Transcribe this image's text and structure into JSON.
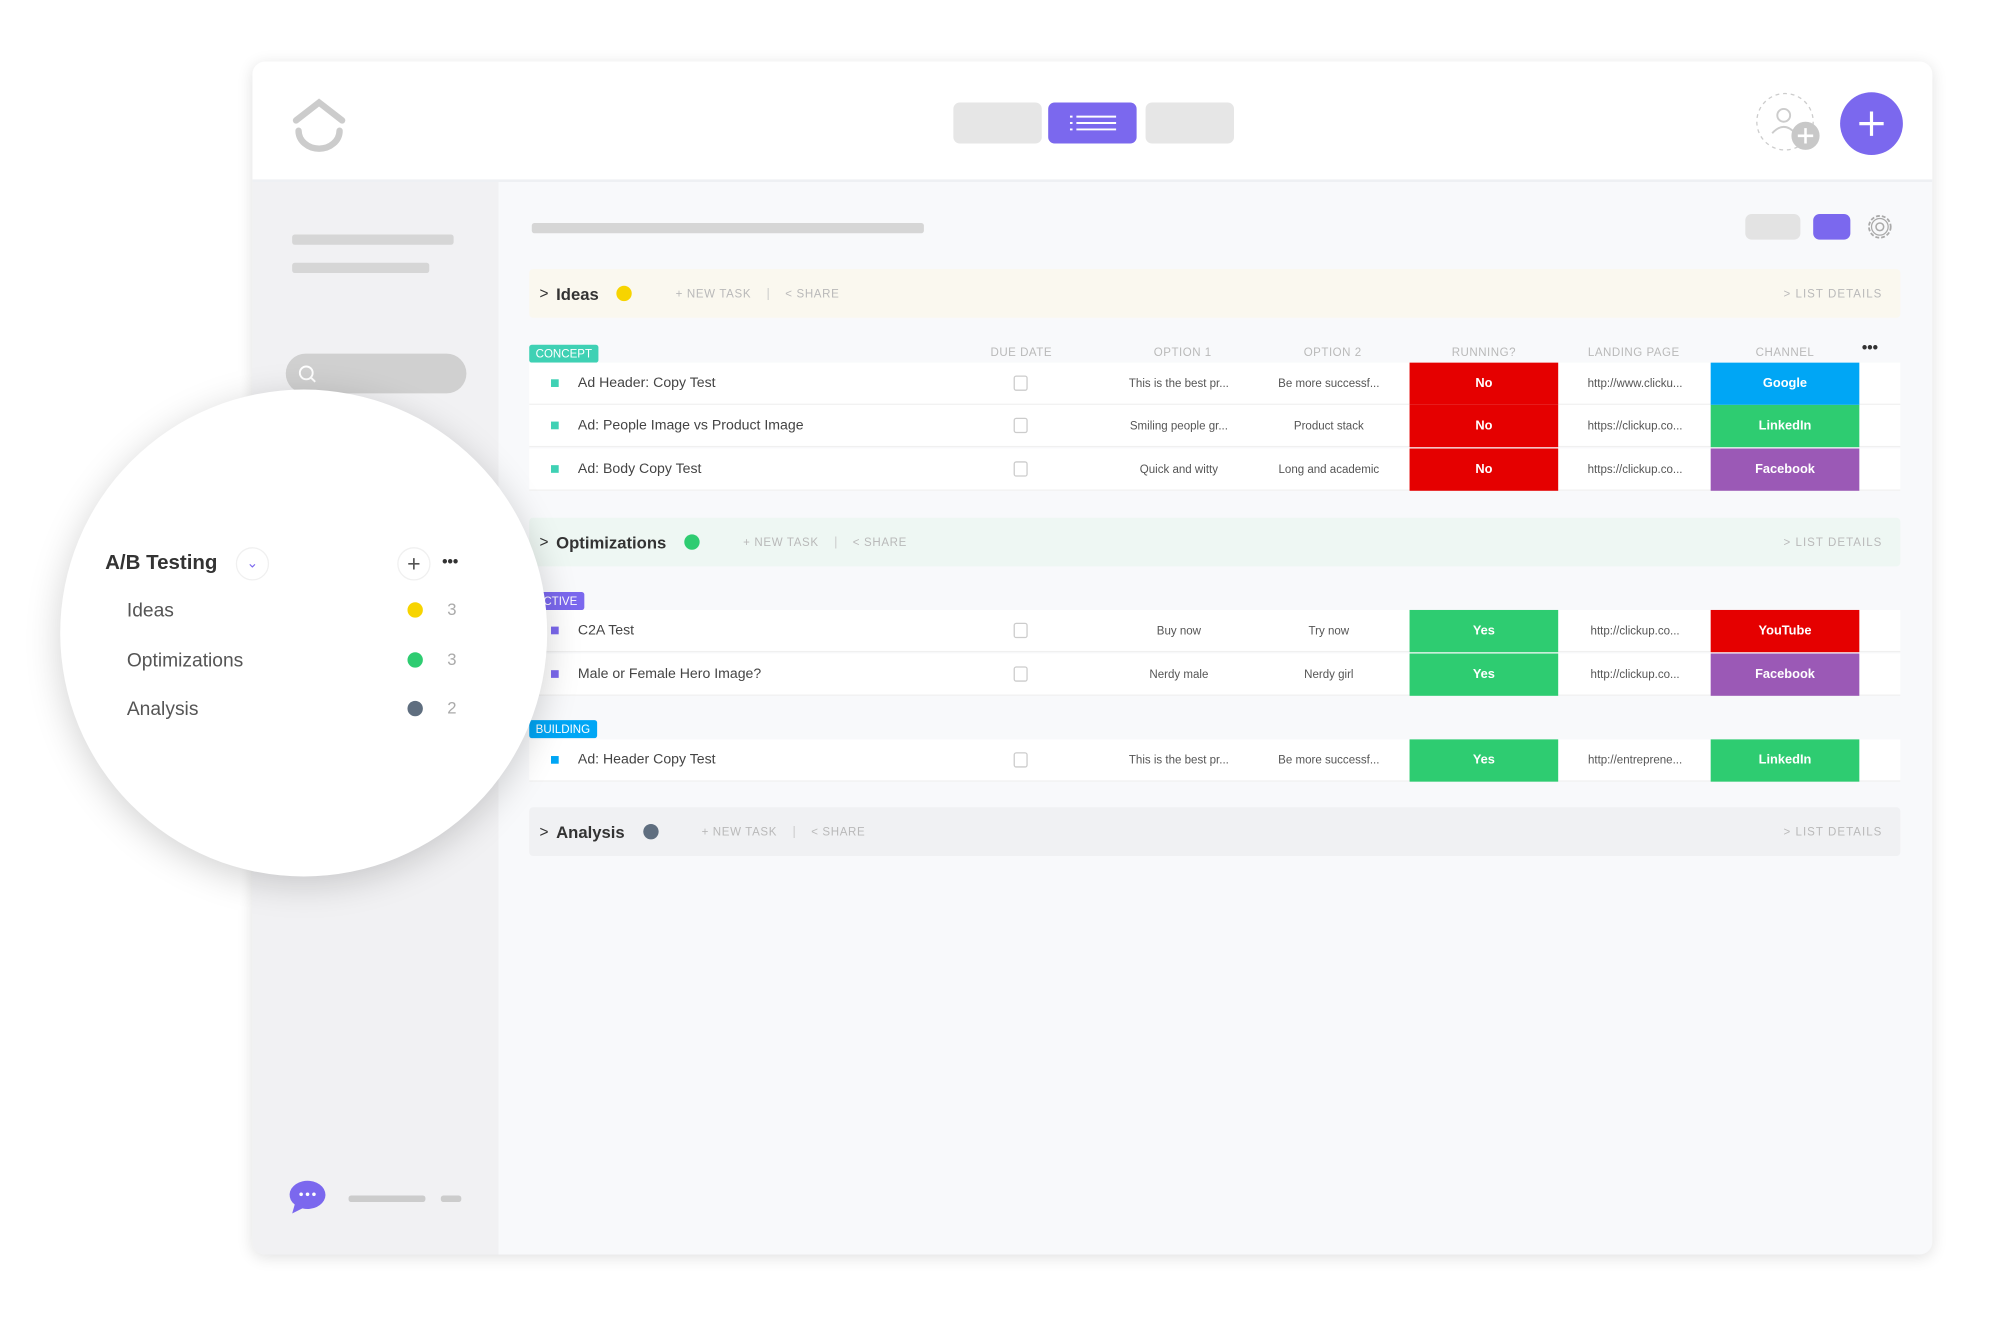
{
  "colors": {
    "accent": "#7b68ee",
    "yellow": "#f7d400",
    "green": "#2ecc71",
    "gray": "#5f6e7f",
    "red": "#e50000",
    "blue": "#00a6f5",
    "purple": "#9b59b6"
  },
  "topbar": {
    "logo": "clickup-logo-icon",
    "view_active": "list-view-icon",
    "invite_icon": "add-user-icon",
    "add_icon": "plus-icon"
  },
  "toolbar": {
    "settings_icon": "gear-icon"
  },
  "sidebar": {
    "search_icon": "search-icon",
    "chat_icon": "chat-icon"
  },
  "popup": {
    "title": "A/B Testing",
    "items": [
      {
        "label": "Ideas",
        "count": "3",
        "color": "#f7d400"
      },
      {
        "label": "Optimizations",
        "count": "3",
        "color": "#2ecc71"
      },
      {
        "label": "Analysis",
        "count": "2",
        "color": "#5f6e7f"
      }
    ]
  },
  "columns": {
    "due": "DUE DATE",
    "opt1": "OPTION 1",
    "opt2": "OPTION 2",
    "running": "RUNNING?",
    "landing": "LANDING PAGE",
    "channel": "CHANNEL"
  },
  "actions": {
    "new_task": "+ NEW TASK",
    "share": "SHARE",
    "list_details": "LIST DETAILS",
    "sep": "|",
    "chevron": ">"
  },
  "groups": [
    {
      "title": "Ideas",
      "color": "#f7d400",
      "bg": "#faf8ef"
    },
    {
      "title": "Optimizations",
      "color": "#2ecc71",
      "bg": "#eef7f3"
    },
    {
      "title": "Analysis",
      "color": "#5f6e7f",
      "bg": "#f0f1f3"
    }
  ],
  "statuses": {
    "concept": "CONCEPT",
    "active": "ACTIVE",
    "building": "BUILDING"
  },
  "rows": [
    {
      "name": "Ad Header: Copy Test",
      "opt1": "This is the best pr...",
      "opt2": "Be more successf...",
      "running": "No",
      "landing": "http://www.clicku...",
      "channel": "Google"
    },
    {
      "name": "Ad: People Image vs Product Image",
      "opt1": "Smiling people gr...",
      "opt2": "Product stack",
      "running": "No",
      "landing": "https://clickup.co...",
      "channel": "LinkedIn"
    },
    {
      "name": "Ad: Body Copy Test",
      "opt1": "Quick and witty",
      "opt2": "Long and academic",
      "running": "No",
      "landing": "https://clickup.co...",
      "channel": "Facebook"
    },
    {
      "name": "C2A Test",
      "opt1": "Buy now",
      "opt2": "Try now",
      "running": "Yes",
      "landing": "http://clickup.co...",
      "channel": "YouTube"
    },
    {
      "name": "Male or Female Hero Image?",
      "opt1": "Nerdy male",
      "opt2": "Nerdy girl",
      "running": "Yes",
      "landing": "http://clickup.co...",
      "channel": "Facebook"
    },
    {
      "name": "Ad: Header Copy Test",
      "opt1": "This is the best pr...",
      "opt2": "Be more successf...",
      "running": "Yes",
      "landing": "http://entreprene...",
      "channel": "LinkedIn"
    }
  ]
}
